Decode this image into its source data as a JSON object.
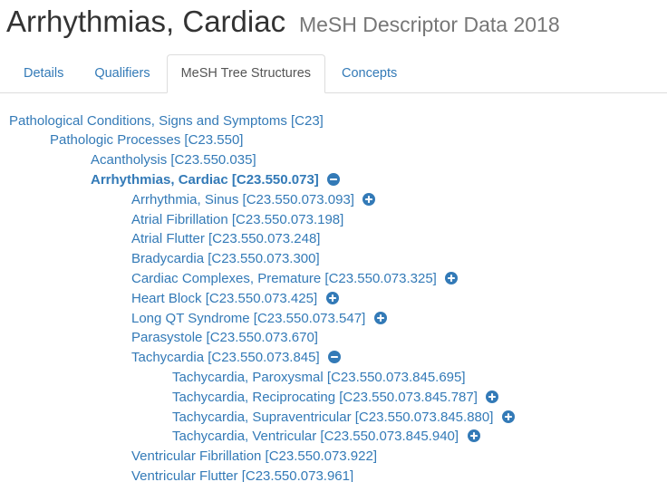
{
  "header": {
    "title": "Arrhythmias, Cardiac",
    "subtitle": "MeSH Descriptor Data 2018"
  },
  "tabs": [
    {
      "label": "Details",
      "active": false
    },
    {
      "label": "Qualifiers",
      "active": false
    },
    {
      "label": "MeSH Tree Structures",
      "active": true
    },
    {
      "label": "Concepts",
      "active": false
    }
  ],
  "colors": {
    "link_blue": "#337ab7",
    "title_text": "#333333",
    "subtitle_gray": "#777777",
    "tab_active_text": "#555555",
    "tab_border": "#dddddd",
    "icon_fill": "#337ab7",
    "icon_glyph": "#ffffff"
  },
  "tree": {
    "nodes": [
      {
        "label": "Pathological Conditions, Signs and Symptoms [C23]",
        "level": 0,
        "bold": false,
        "icon": null
      },
      {
        "label": "Pathologic Processes [C23.550]",
        "level": 1,
        "bold": false,
        "icon": null
      },
      {
        "label": "Acantholysis [C23.550.035]",
        "level": 2,
        "bold": false,
        "icon": null
      },
      {
        "label": "Arrhythmias, Cardiac [C23.550.073]",
        "level": 2,
        "bold": true,
        "icon": "minus-circle"
      },
      {
        "label": "Arrhythmia, Sinus [C23.550.073.093]",
        "level": 3,
        "bold": false,
        "icon": "plus-circle"
      },
      {
        "label": "Atrial Fibrillation [C23.550.073.198]",
        "level": 3,
        "bold": false,
        "icon": null
      },
      {
        "label": "Atrial Flutter [C23.550.073.248]",
        "level": 3,
        "bold": false,
        "icon": null
      },
      {
        "label": "Bradycardia [C23.550.073.300]",
        "level": 3,
        "bold": false,
        "icon": null
      },
      {
        "label": "Cardiac Complexes, Premature [C23.550.073.325]",
        "level": 3,
        "bold": false,
        "icon": "plus-circle"
      },
      {
        "label": "Heart Block [C23.550.073.425]",
        "level": 3,
        "bold": false,
        "icon": "plus-circle"
      },
      {
        "label": "Long QT Syndrome [C23.550.073.547]",
        "level": 3,
        "bold": false,
        "icon": "plus-circle"
      },
      {
        "label": "Parasystole [C23.550.073.670]",
        "level": 3,
        "bold": false,
        "icon": null
      },
      {
        "label": "Tachycardia [C23.550.073.845]",
        "level": 3,
        "bold": false,
        "icon": "minus-circle"
      },
      {
        "label": "Tachycardia, Paroxysmal [C23.550.073.845.695]",
        "level": 4,
        "bold": false,
        "icon": null
      },
      {
        "label": "Tachycardia, Reciprocating [C23.550.073.845.787]",
        "level": 4,
        "bold": false,
        "icon": "plus-circle"
      },
      {
        "label": "Tachycardia, Supraventricular [C23.550.073.845.880]",
        "level": 4,
        "bold": false,
        "icon": "plus-circle"
      },
      {
        "label": "Tachycardia, Ventricular [C23.550.073.845.940]",
        "level": 4,
        "bold": false,
        "icon": "plus-circle"
      },
      {
        "label": "Ventricular Fibrillation [C23.550.073.922]",
        "level": 3,
        "bold": false,
        "icon": null
      },
      {
        "label": "Ventricular Flutter [C23.550.073.961]",
        "level": 3,
        "bold": false,
        "icon": null
      }
    ]
  }
}
